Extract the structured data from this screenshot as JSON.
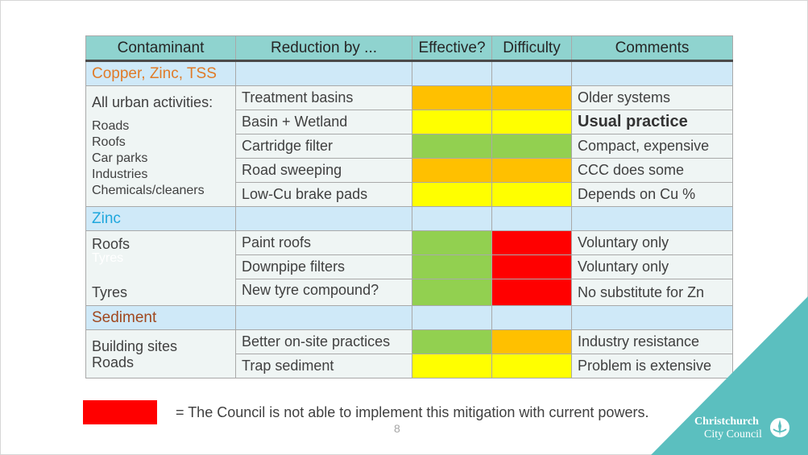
{
  "table": {
    "headers": [
      "Contaminant",
      "Reduction by ...",
      "Effective?",
      "Difficulty",
      "Comments"
    ],
    "groups": [
      {
        "title": "Copper, Zinc, TSS",
        "sources_heading": "All urban activities:",
        "sources": [
          "Roads",
          "Roofs",
          "Car parks",
          "Industries",
          "Chemicals/cleaners"
        ],
        "rows": [
          {
            "measure": "Treatment basins",
            "effective": "orange",
            "difficulty": "orange",
            "comment": "Older systems"
          },
          {
            "measure": "Basin + Wetland",
            "effective": "yellow",
            "difficulty": "yellow",
            "comment": "Usual practice"
          },
          {
            "measure": "Cartridge filter",
            "effective": "green",
            "difficulty": "green",
            "comment": "Compact, expensive"
          },
          {
            "measure": "Road sweeping",
            "effective": "orange",
            "difficulty": "orange",
            "comment": "CCC does some"
          },
          {
            "measure": "Low-Cu brake pads",
            "effective": "yellow",
            "difficulty": "yellow",
            "comment": "Depends on Cu %"
          }
        ]
      },
      {
        "title": "Zinc",
        "sources": [
          "Roofs",
          "Tyres",
          "Tyres"
        ],
        "rows": [
          {
            "measure": "Paint roofs",
            "effective": "green",
            "difficulty": "red",
            "comment": "Voluntary only"
          },
          {
            "measure": "Downpipe filters",
            "effective": "green",
            "difficulty": "red",
            "comment": "Voluntary only"
          },
          {
            "measure": "New tyre compound?",
            "effective": "green",
            "difficulty": "red",
            "comment": "No substitute for Zn"
          }
        ]
      },
      {
        "title": "Sediment",
        "sources": [
          "Building sites",
          "Roads"
        ],
        "rows": [
          {
            "measure": "Better on-site practices",
            "effective": "green",
            "difficulty": "orange",
            "comment": "Industry resistance"
          },
          {
            "measure": "Trap sediment",
            "effective": "yellow",
            "difficulty": "yellow",
            "comment": "Problem is extensive"
          }
        ]
      }
    ]
  },
  "legend": {
    "swatch_color": "#ff0000",
    "text": "= The Council is not able to implement this mitigation with current powers."
  },
  "page_number": "8",
  "logo": {
    "line1": "Christchurch",
    "line2": "City Council"
  },
  "colors": {
    "header_bg": "#8fd3cf",
    "group_bg": "#cfe9f8",
    "red": "#ff0000",
    "orange": "#ffc000",
    "yellow": "#ffff00",
    "green": "#92d050",
    "corner_teal": "#5bbfbf"
  }
}
